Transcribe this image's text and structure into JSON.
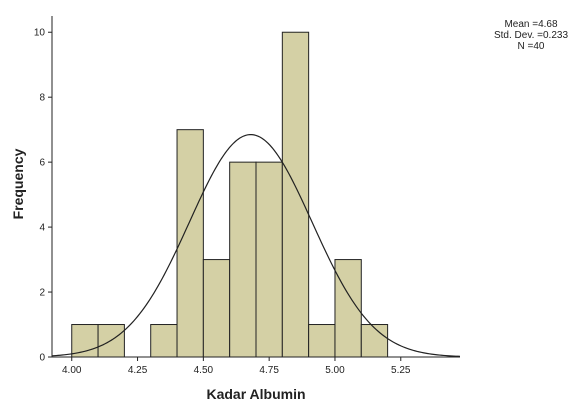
{
  "chart_data": {
    "type": "bar",
    "title": "",
    "xlabel": "Kadar Albumin",
    "ylabel": "Frequency",
    "xlim": [
      3.925,
      5.475
    ],
    "ylim": [
      0,
      10.5
    ],
    "x_ticks": [
      "4.00",
      "4.25",
      "4.50",
      "4.75",
      "5.00",
      "5.25"
    ],
    "x_tick_values": [
      4.0,
      4.25,
      4.5,
      4.75,
      5.0,
      5.25
    ],
    "y_ticks": [
      "0",
      "2",
      "4",
      "6",
      "8",
      "10"
    ],
    "y_tick_values": [
      0,
      2,
      4,
      6,
      8,
      10
    ],
    "bin_width": 0.1,
    "bins": [
      {
        "start": 4.0,
        "end": 4.1,
        "count": 1
      },
      {
        "start": 4.1,
        "end": 4.2,
        "count": 1
      },
      {
        "start": 4.2,
        "end": 4.3,
        "count": 0
      },
      {
        "start": 4.3,
        "end": 4.4,
        "count": 1
      },
      {
        "start": 4.4,
        "end": 4.5,
        "count": 7
      },
      {
        "start": 4.5,
        "end": 4.6,
        "count": 3
      },
      {
        "start": 4.6,
        "end": 4.7,
        "count": 6
      },
      {
        "start": 4.7,
        "end": 4.8,
        "count": 6
      },
      {
        "start": 4.8,
        "end": 4.9,
        "count": 10
      },
      {
        "start": 4.9,
        "end": 5.0,
        "count": 1
      },
      {
        "start": 5.0,
        "end": 5.1,
        "count": 3
      },
      {
        "start": 5.1,
        "end": 5.2,
        "count": 1
      }
    ],
    "normal_curve": {
      "mean": 4.68,
      "std_dev": 0.233,
      "n": 40
    },
    "stats_text": [
      "Mean =4.68",
      "Std. Dev. =0.233",
      "N =40"
    ],
    "bar_color": "#d4d0a5",
    "grid": false
  }
}
